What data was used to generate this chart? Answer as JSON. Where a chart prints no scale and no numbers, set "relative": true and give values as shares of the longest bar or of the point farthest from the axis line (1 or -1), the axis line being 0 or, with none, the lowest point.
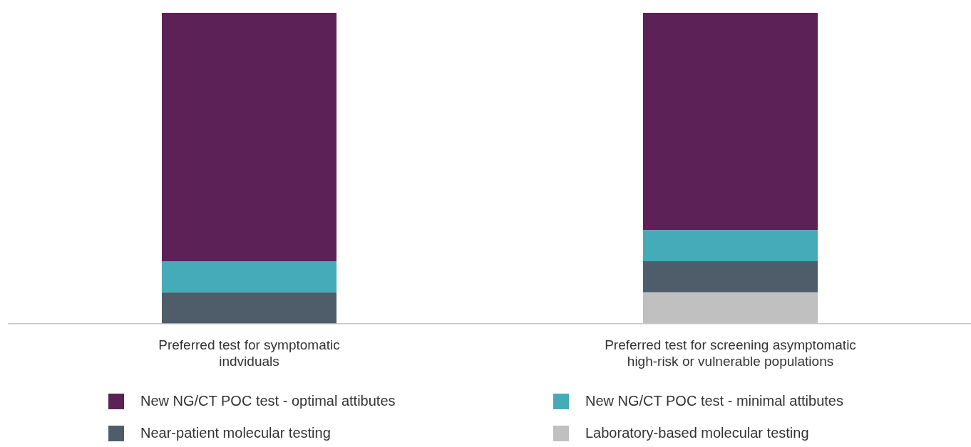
{
  "chart_data": {
    "type": "bar",
    "stacked": true,
    "relative": true,
    "legend": "bottom",
    "categories": [
      "Preferred test for symptomatic\nindviduals",
      "Preferred test for screening asymptomatic\nhigh-risk or vulnerable populations"
    ],
    "series": [
      {
        "name": "Laboratory-based molecular testing",
        "color": "#c0c0c0",
        "values": [
          0,
          0.1
        ]
      },
      {
        "name": "Near-patient molecular testing",
        "color": "#4f5d6b",
        "values": [
          0.1,
          0.1
        ]
      },
      {
        "name": "New NG/CT POC test - minimal attibutes",
        "color": "#46abb8",
        "values": [
          0.1,
          0.1
        ]
      },
      {
        "name": "New NG/CT POC test - optimal attibutes",
        "color": "#5c2257",
        "values": [
          0.8,
          0.7
        ]
      }
    ]
  }
}
